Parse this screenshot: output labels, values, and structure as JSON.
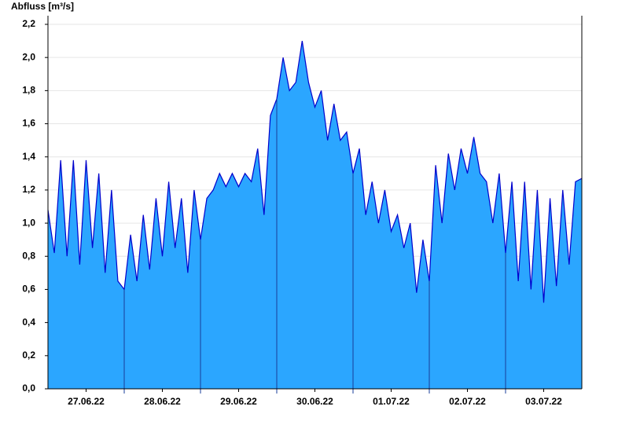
{
  "chart_data": {
    "type": "area",
    "title": "Abfluss [m³/s]",
    "x": [
      0,
      2,
      4,
      6,
      8,
      10,
      12,
      14,
      16,
      18,
      20,
      22,
      24,
      26,
      28,
      30,
      32,
      34,
      36,
      38,
      40,
      42,
      44,
      46,
      48,
      50,
      52,
      54,
      56,
      58,
      60,
      62,
      64,
      66,
      68,
      70,
      72,
      74,
      76,
      78,
      80,
      82,
      84,
      86,
      88,
      90,
      92,
      94,
      96,
      98,
      100,
      102,
      104,
      106,
      108,
      110,
      112,
      114,
      116,
      118,
      120,
      122,
      124,
      126,
      128,
      130,
      132,
      134,
      136,
      138,
      140,
      142,
      144,
      146,
      148,
      150,
      152,
      154,
      156,
      158,
      160,
      162,
      164,
      166,
      168
    ],
    "values": [
      1.08,
      0.82,
      1.38,
      0.8,
      1.38,
      0.75,
      1.38,
      0.85,
      1.3,
      0.7,
      1.2,
      0.65,
      0.6,
      0.93,
      0.65,
      1.05,
      0.72,
      1.15,
      0.8,
      1.25,
      0.85,
      1.15,
      0.7,
      1.2,
      0.9,
      1.15,
      1.2,
      1.3,
      1.22,
      1.3,
      1.22,
      1.3,
      1.25,
      1.45,
      1.05,
      1.65,
      1.75,
      2.0,
      1.8,
      1.85,
      2.1,
      1.85,
      1.7,
      1.8,
      1.5,
      1.72,
      1.5,
      1.55,
      1.3,
      1.45,
      1.05,
      1.25,
      1.0,
      1.2,
      0.95,
      1.05,
      0.85,
      1.0,
      0.58,
      0.9,
      0.65,
      1.35,
      1.0,
      1.42,
      1.2,
      1.45,
      1.3,
      1.52,
      1.3,
      1.25,
      1.0,
      1.3,
      0.82,
      1.25,
      0.65,
      1.25,
      0.6,
      1.2,
      0.52,
      1.15,
      0.62,
      1.2,
      0.75,
      1.25,
      1.27
    ],
    "fill_color": "#2ba6ff",
    "line_color": "#0000cc",
    "xlim": [
      0,
      168
    ],
    "xticks": [
      {
        "value": 12,
        "label": "27.06.22"
      },
      {
        "value": 36,
        "label": "28.06.22"
      },
      {
        "value": 60,
        "label": "29.06.22"
      },
      {
        "value": 84,
        "label": "30.06.22"
      },
      {
        "value": 108,
        "label": "01.07.22"
      },
      {
        "value": 132,
        "label": "02.07.22"
      },
      {
        "value": 156,
        "label": "03.07.22"
      }
    ],
    "ylim": [
      0,
      2.2
    ],
    "yticks": [
      {
        "value": 0,
        "label": "0,0"
      },
      {
        "value": 0.2,
        "label": "0,2"
      },
      {
        "value": 0.4,
        "label": "0,4"
      },
      {
        "value": 0.6,
        "label": "0,6"
      },
      {
        "value": 0.8,
        "label": "0,8"
      },
      {
        "value": 1.0,
        "label": "1,0"
      },
      {
        "value": 1.2,
        "label": "1,2"
      },
      {
        "value": 1.4,
        "label": "1,4"
      },
      {
        "value": 1.6,
        "label": "1,6"
      },
      {
        "value": 1.8,
        "label": "1,8"
      },
      {
        "value": 2.0,
        "label": "2,0"
      },
      {
        "value": 2.2,
        "label": "2,2"
      }
    ],
    "grid": true
  }
}
